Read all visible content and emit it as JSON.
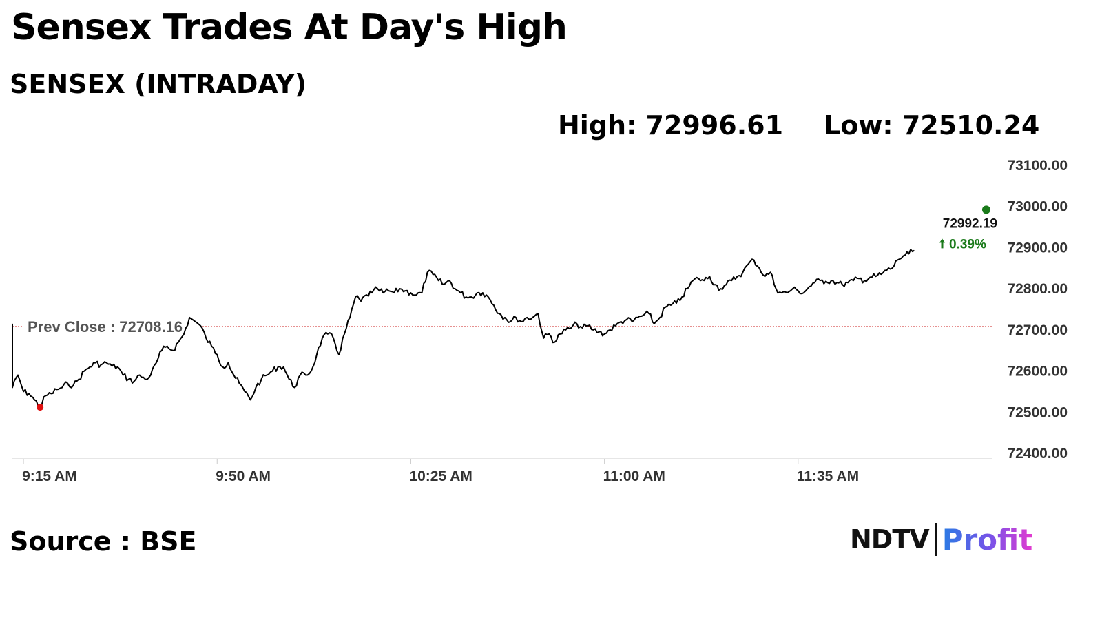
{
  "headline": "Sensex Trades At Day's High",
  "subtitle": "SENSEX (INTRADAY)",
  "stats": {
    "high": "High: 72996.61",
    "low": "Low: 72510.24"
  },
  "source": "Source : BSE",
  "logo": {
    "ndtv": "NDTV",
    "profit": "Profit"
  },
  "chart_data": {
    "type": "line",
    "title": "",
    "xlabel": "",
    "ylabel": "",
    "ylim": [
      72400,
      73100
    ],
    "xlim": [
      "9:13",
      "12:10"
    ],
    "grid": false,
    "y_ticks": [
      "73100.00",
      "73000.00",
      "72900.00",
      "72800.00",
      "72700.00",
      "72600.00",
      "72500.00",
      "72400.00"
    ],
    "x_ticks": [
      "9:15 AM",
      "9:50 AM",
      "10:25 AM",
      "11:00 AM",
      "11:35 AM"
    ],
    "prev_close": {
      "label": "Prev Close : 72708.16",
      "value": 72708.16
    },
    "last": {
      "value_label": "72992.19",
      "change_label": "0.39%",
      "time": "12:09"
    },
    "low_marker": {
      "time": "9:18",
      "value": 72512
    },
    "colors": {
      "line": "#000000",
      "prev_close": "#cc2222",
      "low_marker": "#e01010",
      "last_marker": "#1a7a1a",
      "change_text": "#1a7a1a",
      "axis": "#cccccc",
      "ticks": "#333333"
    },
    "series": [
      {
        "points": [
          [
            "9:13",
            72715
          ],
          [
            "9:13",
            72560
          ],
          [
            "9:14",
            72590
          ],
          [
            "9:15",
            72550
          ],
          [
            "9:16",
            72545
          ],
          [
            "9:17",
            72530
          ],
          [
            "9:18",
            72512
          ],
          [
            "9:19",
            72540
          ],
          [
            "9:20",
            72545
          ],
          [
            "9:21",
            72555
          ],
          [
            "9:22",
            72560
          ],
          [
            "9:23",
            72570
          ],
          [
            "9:24",
            72565
          ],
          [
            "9:25",
            72580
          ],
          [
            "9:26",
            72600
          ],
          [
            "9:27",
            72610
          ],
          [
            "9:28",
            72620
          ],
          [
            "9:29",
            72615
          ],
          [
            "9:30",
            72620
          ],
          [
            "9:31",
            72612
          ],
          [
            "9:32",
            72610
          ],
          [
            "9:33",
            72590
          ],
          [
            "9:34",
            72580
          ],
          [
            "9:35",
            72575
          ],
          [
            "9:36",
            72590
          ],
          [
            "9:37",
            72580
          ],
          [
            "9:38",
            72590
          ],
          [
            "9:39",
            72620
          ],
          [
            "9:40",
            72650
          ],
          [
            "9:41",
            72660
          ],
          [
            "9:42",
            72650
          ],
          [
            "9:43",
            72670
          ],
          [
            "9:44",
            72690
          ],
          [
            "9:45",
            72730
          ],
          [
            "9:47",
            72710
          ],
          [
            "9:48",
            72680
          ],
          [
            "9:49",
            72660
          ],
          [
            "9:50",
            72640
          ],
          [
            "9:51",
            72610
          ],
          [
            "9:52",
            72620
          ],
          [
            "9:53",
            72590
          ],
          [
            "9:54",
            72570
          ],
          [
            "9:55",
            72550
          ],
          [
            "9:56",
            72530
          ],
          [
            "9:57",
            72560
          ],
          [
            "9:58",
            72580
          ],
          [
            "9:59",
            72590
          ],
          [
            "10:00",
            72600
          ],
          [
            "10:01",
            72610
          ],
          [
            "10:02",
            72610
          ],
          [
            "10:03",
            72580
          ],
          [
            "10:04",
            72560
          ],
          [
            "10:05",
            72590
          ],
          [
            "10:06",
            72590
          ],
          [
            "10:07",
            72600
          ],
          [
            "10:08",
            72640
          ],
          [
            "10:09",
            72680
          ],
          [
            "10:10",
            72690
          ],
          [
            "10:11",
            72680
          ],
          [
            "10:12",
            72640
          ],
          [
            "10:13",
            72690
          ],
          [
            "10:14",
            72730
          ],
          [
            "10:15",
            72780
          ],
          [
            "10:16",
            72770
          ],
          [
            "10:17",
            72785
          ],
          [
            "10:18",
            72790
          ],
          [
            "10:19",
            72800
          ],
          [
            "10:20",
            72790
          ],
          [
            "10:21",
            72795
          ],
          [
            "10:22",
            72790
          ],
          [
            "10:23",
            72800
          ],
          [
            "10:24",
            72795
          ],
          [
            "10:25",
            72790
          ],
          [
            "10:26",
            72785
          ],
          [
            "10:27",
            72790
          ],
          [
            "10:28",
            72840
          ],
          [
            "10:29",
            72835
          ],
          [
            "10:30",
            72820
          ],
          [
            "10:31",
            72810
          ],
          [
            "10:32",
            72820
          ],
          [
            "10:33",
            72800
          ],
          [
            "10:34",
            72790
          ],
          [
            "10:35",
            72780
          ],
          [
            "10:36",
            72780
          ],
          [
            "10:37",
            72790
          ],
          [
            "10:38",
            72790
          ],
          [
            "10:39",
            72780
          ],
          [
            "10:40",
            72760
          ],
          [
            "10:41",
            72740
          ],
          [
            "10:42",
            72730
          ],
          [
            "10:43",
            72720
          ],
          [
            "10:44",
            72730
          ],
          [
            "10:45",
            72720
          ],
          [
            "10:46",
            72730
          ],
          [
            "10:47",
            72730
          ],
          [
            "10:48",
            72740
          ],
          [
            "10:49",
            72680
          ],
          [
            "10:50",
            72690
          ],
          [
            "10:51",
            72670
          ],
          [
            "10:52",
            72690
          ],
          [
            "10:53",
            72700
          ],
          [
            "10:54",
            72705
          ],
          [
            "10:55",
            72715
          ],
          [
            "10:56",
            72705
          ],
          [
            "10:57",
            72710
          ],
          [
            "10:58",
            72700
          ],
          [
            "10:59",
            72695
          ],
          [
            "11:00",
            72690
          ],
          [
            "11:01",
            72700
          ],
          [
            "11:02",
            72710
          ],
          [
            "11:03",
            72720
          ],
          [
            "11:04",
            72725
          ],
          [
            "11:05",
            72720
          ],
          [
            "11:06",
            72730
          ],
          [
            "11:07",
            72735
          ],
          [
            "11:08",
            72740
          ],
          [
            "11:09",
            72715
          ],
          [
            "11:10",
            72730
          ],
          [
            "11:11",
            72755
          ],
          [
            "11:12",
            72760
          ],
          [
            "11:13",
            72765
          ],
          [
            "11:14",
            72780
          ],
          [
            "11:15",
            72800
          ],
          [
            "11:16",
            72820
          ],
          [
            "11:17",
            72825
          ],
          [
            "11:18",
            72820
          ],
          [
            "11:19",
            72830
          ],
          [
            "11:20",
            72810
          ],
          [
            "11:21",
            72800
          ],
          [
            "11:22",
            72810
          ],
          [
            "11:23",
            72820
          ],
          [
            "11:24",
            72830
          ],
          [
            "11:25",
            72840
          ],
          [
            "11:26",
            72860
          ],
          [
            "11:27",
            72870
          ],
          [
            "11:28",
            72850
          ],
          [
            "11:29",
            72830
          ],
          [
            "11:30",
            72840
          ],
          [
            "11:31",
            72800
          ],
          [
            "11:32",
            72790
          ],
          [
            "11:33",
            72790
          ],
          [
            "11:34",
            72800
          ],
          [
            "11:35",
            72795
          ],
          [
            "11:36",
            72790
          ],
          [
            "11:37",
            72805
          ],
          [
            "11:38",
            72815
          ],
          [
            "11:39",
            72820
          ],
          [
            "11:40",
            72818
          ],
          [
            "11:41",
            72820
          ],
          [
            "11:42",
            72815
          ],
          [
            "11:43",
            72810
          ],
          [
            "11:44",
            72815
          ],
          [
            "11:45",
            72820
          ],
          [
            "11:46",
            72825
          ],
          [
            "11:47",
            72820
          ],
          [
            "11:48",
            72828
          ],
          [
            "11:49",
            72830
          ],
          [
            "11:50",
            72835
          ],
          [
            "11:51",
            72845
          ],
          [
            "11:52",
            72850
          ],
          [
            "11:53",
            72870
          ],
          [
            "11:54",
            72880
          ],
          [
            "11:55",
            72885
          ],
          [
            "11:56",
            72893
          ]
        ]
      }
    ]
  }
}
